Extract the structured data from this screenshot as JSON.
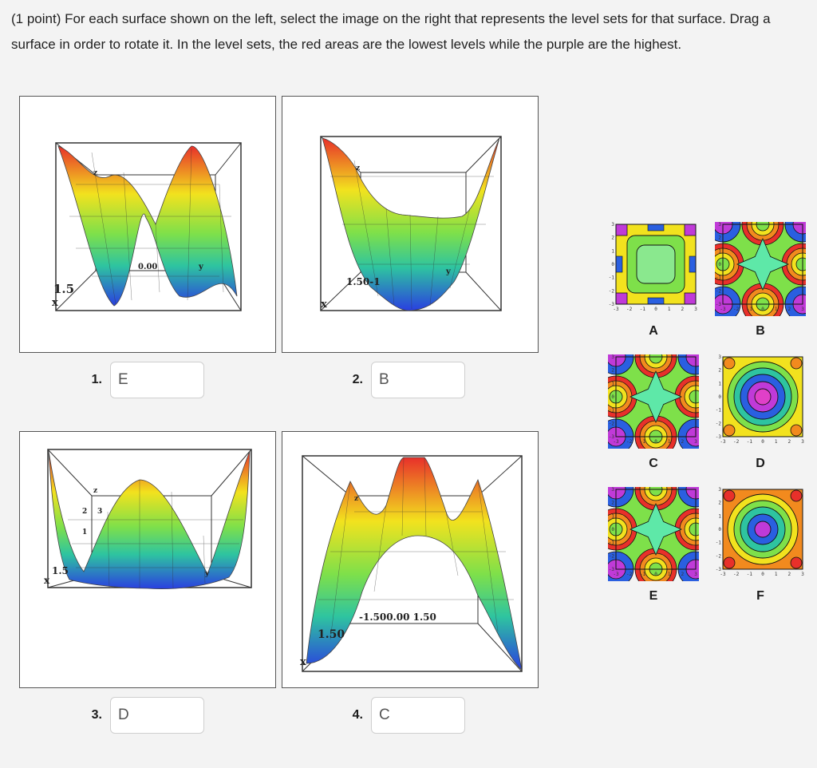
{
  "question": {
    "text": "(1 point) For each surface shown on the left, select the image on the right that represents the level sets for that surface. Drag a surface in order to rotate it. In the level sets, the red areas are the lowest levels while the purple are the highest."
  },
  "surfaces": [
    {
      "number": "1.",
      "answer": "E",
      "axis_labels": [
        "0.00",
        "1.5",
        "z",
        "x",
        "y"
      ]
    },
    {
      "number": "2.",
      "answer": "B",
      "axis_labels": [
        "1.50-1",
        "z",
        "x",
        "y"
      ]
    },
    {
      "number": "3.",
      "answer": "D",
      "axis_labels": [
        "2",
        "3",
        "1",
        "z",
        "1.5",
        "x",
        "y"
      ]
    },
    {
      "number": "4.",
      "answer": "C",
      "axis_labels": [
        "-1.500.00 1.50",
        "1.50",
        "z",
        "x"
      ]
    }
  ],
  "level_sets": [
    {
      "letter": "A",
      "pattern": "square"
    },
    {
      "letter": "B",
      "pattern": "star"
    },
    {
      "letter": "C",
      "pattern": "star"
    },
    {
      "letter": "D",
      "pattern": "rings"
    },
    {
      "letter": "E",
      "pattern": "star"
    },
    {
      "letter": "F",
      "pattern": "rings-orange"
    }
  ],
  "tick_labels": {
    "x": [
      "-3",
      "-2",
      "-1",
      "0",
      "1",
      "2",
      "3"
    ],
    "y": [
      "3",
      "2",
      "1",
      "0",
      "-1",
      "-2",
      "-3"
    ]
  },
  "colors": {
    "red": "#e8302a",
    "orange": "#f28a1e",
    "yellow": "#f2e21e",
    "green": "#7ee04a",
    "teal": "#2ec4a0",
    "blue": "#2a5fe0",
    "purple": "#c03ad8"
  }
}
